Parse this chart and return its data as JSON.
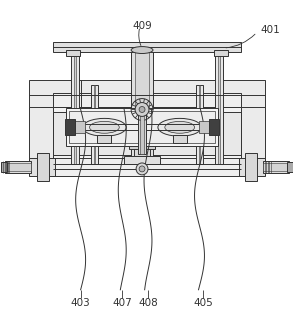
{
  "fig_width": 2.94,
  "fig_height": 3.19,
  "dpi": 100,
  "bg_color": "#ffffff",
  "lc": "#333333",
  "lw": 0.7,
  "label_409": "409",
  "label_401": "401",
  "label_403": "403",
  "label_407": "407",
  "label_408": "408",
  "label_405": "405",
  "font_size": 7.5
}
